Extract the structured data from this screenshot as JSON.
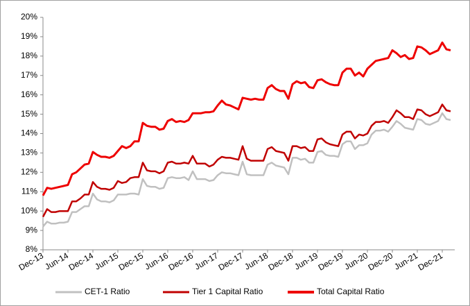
{
  "chart_data": {
    "type": "line",
    "categories": [
      "Dec-13",
      null,
      null,
      null,
      null,
      null,
      "Jun-14",
      null,
      null,
      null,
      null,
      null,
      "Dec-14",
      null,
      null,
      null,
      null,
      null,
      "Jun-15",
      null,
      null,
      null,
      null,
      null,
      "Dec-15",
      null,
      null,
      null,
      null,
      null,
      "Jun-16",
      null,
      null,
      null,
      null,
      null,
      "Dec-16",
      null,
      null,
      null,
      null,
      null,
      "Jun-17",
      null,
      null,
      null,
      null,
      null,
      "Dec-17",
      null,
      null,
      null,
      null,
      null,
      "Jun-18",
      null,
      null,
      null,
      null,
      null,
      "Dec-18",
      null,
      null,
      null,
      null,
      null,
      "Jun-19",
      null,
      null,
      null,
      null,
      null,
      "Dec-19",
      null,
      null,
      null,
      null,
      null,
      "Jun-20",
      null,
      null,
      null,
      null,
      null,
      "Dec-20",
      null,
      null,
      null,
      null,
      null,
      "Jun-21",
      null,
      null,
      null,
      null,
      null,
      "Dec-21",
      null,
      null
    ],
    "series": [
      {
        "name": "CET-1 Ratio",
        "color": "#c0c0c0",
        "values": [
          9.2,
          9.45,
          9.35,
          9.35,
          9.4,
          9.4,
          9.45,
          9.95,
          9.95,
          10.1,
          10.25,
          10.25,
          10.9,
          10.6,
          10.5,
          10.5,
          10.45,
          10.55,
          10.85,
          10.85,
          10.85,
          10.9,
          10.9,
          10.85,
          11.65,
          11.3,
          11.25,
          11.25,
          11.15,
          11.2,
          11.7,
          11.75,
          11.7,
          11.7,
          11.75,
          11.6,
          12.05,
          11.65,
          11.65,
          11.65,
          11.55,
          11.6,
          11.85,
          12.0,
          11.95,
          11.95,
          11.9,
          11.85,
          12.55,
          11.9,
          11.85,
          11.85,
          11.85,
          11.85,
          12.4,
          12.5,
          12.35,
          12.3,
          12.25,
          11.9,
          12.75,
          12.75,
          12.65,
          12.7,
          12.5,
          12.5,
          13.05,
          13.1,
          12.9,
          12.85,
          12.85,
          12.8,
          13.45,
          13.6,
          13.6,
          13.2,
          13.4,
          13.4,
          13.5,
          13.95,
          14.15,
          14.15,
          14.2,
          14.1,
          14.35,
          14.65,
          14.5,
          14.3,
          14.25,
          14.2,
          14.75,
          14.7,
          14.5,
          14.45,
          14.55,
          14.65,
          15.05,
          14.75,
          14.7
        ]
      },
      {
        "name": "Tier 1 Capital Ratio",
        "color": "#c00000",
        "values": [
          9.7,
          10.1,
          9.95,
          9.95,
          10.0,
          10.0,
          10.0,
          10.5,
          10.5,
          10.65,
          10.85,
          10.85,
          11.5,
          11.25,
          11.15,
          11.15,
          11.1,
          11.2,
          11.55,
          11.45,
          11.5,
          11.7,
          11.75,
          11.75,
          12.5,
          12.1,
          12.05,
          12.05,
          11.95,
          12.05,
          12.5,
          12.55,
          12.45,
          12.45,
          12.5,
          12.45,
          12.85,
          12.45,
          12.45,
          12.45,
          12.3,
          12.4,
          12.65,
          12.8,
          12.75,
          12.75,
          12.7,
          12.65,
          13.35,
          12.7,
          12.6,
          12.6,
          12.6,
          12.6,
          13.2,
          13.3,
          13.1,
          13.05,
          13.0,
          12.6,
          13.35,
          13.35,
          13.25,
          13.3,
          13.1,
          13.1,
          13.7,
          13.75,
          13.55,
          13.45,
          13.4,
          13.35,
          13.95,
          14.1,
          14.1,
          13.75,
          13.95,
          13.9,
          14.0,
          14.4,
          14.6,
          14.6,
          14.65,
          14.55,
          14.85,
          15.2,
          15.05,
          14.85,
          14.85,
          14.75,
          15.25,
          15.2,
          15.0,
          14.9,
          15.0,
          15.1,
          15.5,
          15.2,
          15.15
        ]
      },
      {
        "name": "Total Capital Ratio",
        "color": "#ee0000",
        "values": [
          10.8,
          11.2,
          11.15,
          11.2,
          11.25,
          11.3,
          11.35,
          11.9,
          12.0,
          12.2,
          12.4,
          12.45,
          13.05,
          12.9,
          12.8,
          12.8,
          12.75,
          12.85,
          13.1,
          13.35,
          13.25,
          13.35,
          13.6,
          13.6,
          14.55,
          14.4,
          14.35,
          14.35,
          14.2,
          14.25,
          14.65,
          14.75,
          14.6,
          14.65,
          14.6,
          14.7,
          15.05,
          15.05,
          15.05,
          15.1,
          15.1,
          15.15,
          15.45,
          15.7,
          15.5,
          15.45,
          15.35,
          15.25,
          15.85,
          15.8,
          15.75,
          15.8,
          15.75,
          15.75,
          16.35,
          16.5,
          16.3,
          16.2,
          16.2,
          15.8,
          16.55,
          16.7,
          16.6,
          16.65,
          16.4,
          16.35,
          16.75,
          16.8,
          16.65,
          16.55,
          16.5,
          16.5,
          17.15,
          17.35,
          17.35,
          17.0,
          17.15,
          16.95,
          17.35,
          17.55,
          17.75,
          17.8,
          17.85,
          17.9,
          18.3,
          18.15,
          17.95,
          18.05,
          17.85,
          17.9,
          18.5,
          18.45,
          18.3,
          18.1,
          18.2,
          18.3,
          18.7,
          18.35,
          18.3
        ]
      }
    ],
    "ylim": [
      8,
      20
    ],
    "yticks": [
      {
        "value": 8,
        "label": "8%"
      },
      {
        "value": 9,
        "label": "9%"
      },
      {
        "value": 10,
        "label": "10%"
      },
      {
        "value": 11,
        "label": "11%"
      },
      {
        "value": 12,
        "label": "12%"
      },
      {
        "value": 13,
        "label": "13%"
      },
      {
        "value": 14,
        "label": "14%"
      },
      {
        "value": 15,
        "label": "15%"
      },
      {
        "value": 16,
        "label": "16%"
      },
      {
        "value": 17,
        "label": "17%"
      },
      {
        "value": 18,
        "label": "18%"
      },
      {
        "value": 19,
        "label": "19%"
      },
      {
        "value": 20,
        "label": "20%"
      }
    ],
    "grid": false,
    "legend": "bottom"
  }
}
